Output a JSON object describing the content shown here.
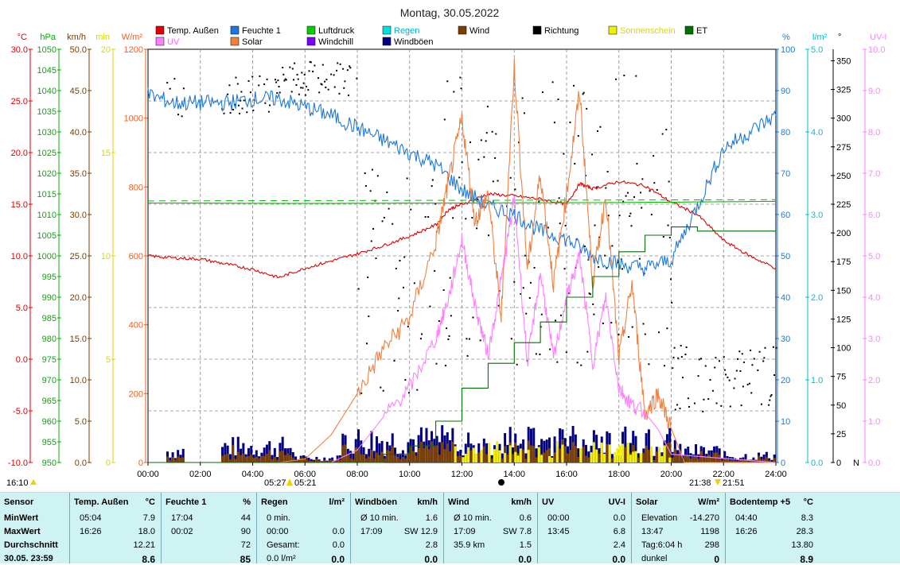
{
  "title": "Montag, 30.05.2022",
  "legend": [
    {
      "label": "Temp. Außen",
      "color": "#e00000"
    },
    {
      "label": "Feuchte 1",
      "color": "#1e78dc"
    },
    {
      "label": "Luftdruck",
      "color": "#00d000"
    },
    {
      "label": "Regen",
      "color": "#00e0e0"
    },
    {
      "label": "Wind",
      "color": "#7a3f00"
    },
    {
      "label": "Richtung",
      "color": "#000000"
    },
    {
      "label": "Sonnenschein",
      "color": "#f0f000"
    },
    {
      "label": "ET",
      "color": "#007000"
    },
    {
      "label": "UV",
      "color": "#ff80ff"
    },
    {
      "label": "Solar",
      "color": "#f08040"
    },
    {
      "label": "Windchill",
      "color": "#8000ff"
    },
    {
      "label": "Windböen",
      "color": "#000080"
    }
  ],
  "axes": {
    "left": [
      {
        "unit": "°C",
        "color": "#e00000",
        "ticks": [
          "30.0",
          "25.0",
          "20.0",
          "15.0",
          "10.0",
          "5.0",
          "0.0",
          "-5.0",
          "-10.0"
        ]
      },
      {
        "unit": "hPa",
        "color": "#00b000",
        "ticks": [
          "1050",
          "1045",
          "1040",
          "1035",
          "1030",
          "1025",
          "1020",
          "1015",
          "1010",
          "1005",
          "1000",
          "995",
          "990",
          "985",
          "980",
          "975",
          "970",
          "965",
          "960",
          "955",
          "950"
        ]
      },
      {
        "unit": "km/h",
        "color": "#7a3f00",
        "ticks": [
          "50.0",
          "45.0",
          "40.0",
          "35.0",
          "30.0",
          "25.0",
          "20.0",
          "15.0",
          "10.0",
          "5.0",
          "0.0"
        ]
      },
      {
        "unit": "min",
        "color": "#d8d800",
        "ticks": [
          "20",
          "15",
          "10",
          "5",
          "0"
        ]
      },
      {
        "unit": "W/m²",
        "color": "#f06020",
        "ticks": [
          "1200",
          "1000",
          "800",
          "600",
          "400",
          "200",
          "0"
        ]
      }
    ],
    "right": [
      {
        "unit": "%",
        "color": "#1e78dc",
        "ticks": [
          "100",
          "90",
          "80",
          "70",
          "60",
          "50",
          "40",
          "30",
          "20",
          "10",
          "0"
        ]
      },
      {
        "unit": "l/m²",
        "color": "#00c0d0",
        "ticks": [
          "5.0",
          "4.0",
          "3.0",
          "2.0",
          "1.0",
          "0.0"
        ]
      },
      {
        "unit": "°",
        "color": "#000000",
        "ticks": [
          "350",
          "325",
          "300",
          "275",
          "250",
          "225",
          "200",
          "175",
          "150",
          "125",
          "100",
          "75",
          "50",
          "25",
          "0"
        ]
      },
      {
        "unit": "UV-I",
        "color": "#ff80ff",
        "ticks": [
          "10.0",
          "9.0",
          "8.0",
          "7.0",
          "6.0",
          "5.0",
          "4.0",
          "3.0",
          "2.0",
          "1.0",
          "0.0"
        ]
      }
    ],
    "x_ticks": [
      "00:00",
      "02:00",
      "04:00",
      "06:00",
      "08:00",
      "10:00",
      "12:00",
      "14:00",
      "16:00",
      "18:00",
      "20:00",
      "22:00",
      "24:00"
    ],
    "n_label": "N",
    "top_left_time": "16:10",
    "sunrise": "05:27",
    "sunrise2": "05:21",
    "sunset": "21:38",
    "sunset2": "21:51"
  },
  "chart_data": {
    "type": "line",
    "title": "Montag, 30.05.2022",
    "x_unit": "hour of day",
    "xlim": [
      0,
      24
    ],
    "series": [
      {
        "name": "Temp. Außen",
        "unit": "°C",
        "ylim": [
          -10,
          30
        ],
        "x": [
          0,
          1,
          2,
          3,
          4,
          5,
          6,
          7,
          8,
          9,
          10,
          11,
          11.5,
          12,
          13,
          14,
          15,
          16,
          16.5,
          17,
          18,
          19,
          20,
          21,
          22,
          23,
          24
        ],
        "y": [
          10.0,
          9.8,
          9.7,
          9.2,
          8.7,
          7.9,
          8.8,
          9.5,
          10.2,
          11.0,
          11.9,
          13.0,
          14.5,
          15.0,
          16.0,
          15.8,
          15.5,
          15.0,
          17.0,
          16.5,
          17.2,
          16.8,
          15.2,
          14.0,
          11.5,
          10.0,
          8.8
        ]
      },
      {
        "name": "Feuchte 1",
        "unit": "%",
        "ylim": [
          0,
          100
        ],
        "x": [
          0,
          1,
          2,
          3,
          4,
          5,
          6,
          7,
          8,
          9,
          10,
          11,
          12,
          13,
          14,
          15,
          16,
          17,
          18,
          19,
          20,
          21,
          22,
          23,
          24
        ],
        "y": [
          89,
          87,
          87,
          87,
          88,
          88,
          86,
          84,
          81,
          78,
          75,
          72,
          66,
          62,
          60,
          56,
          54,
          50,
          48,
          47,
          49,
          62,
          76,
          80,
          84
        ]
      },
      {
        "name": "Luftdruck",
        "unit": "hPa",
        "ylim": [
          950,
          1050
        ],
        "x": [
          0,
          6,
          12,
          18,
          24
        ],
        "y": [
          1012.8,
          1012.7,
          1012.8,
          1012.9,
          1013.2
        ]
      },
      {
        "name": "Solar",
        "unit": "W/m²",
        "ylim": [
          0,
          1200
        ],
        "x": [
          0,
          5,
          6,
          7,
          8,
          9,
          10,
          11,
          11.5,
          12,
          12.5,
          13,
          13.5,
          14,
          14.5,
          15,
          15.5,
          16,
          16.5,
          17,
          17.5,
          18,
          18.5,
          19,
          19.5,
          20,
          20.5,
          24
        ],
        "y": [
          0,
          0,
          10,
          80,
          200,
          330,
          420,
          640,
          820,
          1000,
          700,
          780,
          420,
          1150,
          560,
          840,
          520,
          780,
          1080,
          520,
          780,
          300,
          520,
          140,
          200,
          100,
          0,
          0
        ]
      },
      {
        "name": "UV",
        "unit": "UV-I",
        "ylim": [
          0,
          10
        ],
        "x": [
          0,
          7,
          8,
          9,
          10,
          11,
          11.5,
          12,
          12.5,
          13,
          13.5,
          14,
          14.5,
          15,
          15.5,
          16,
          16.5,
          17,
          17.5,
          18,
          18.5,
          19,
          19.5,
          20,
          24
        ],
        "y": [
          0,
          0,
          0.3,
          1.1,
          1.8,
          3.0,
          4.0,
          5.4,
          3.8,
          2.6,
          4.4,
          6.4,
          2.4,
          4.6,
          2.5,
          4.0,
          5.0,
          2.4,
          4.0,
          1.8,
          1.4,
          1.2,
          0.8,
          0.2,
          0
        ]
      },
      {
        "name": "ET",
        "unit": "l/m²",
        "ylim": [
          0,
          5
        ],
        "x": [
          0,
          8,
          9,
          10,
          11,
          12,
          13,
          14,
          15,
          16,
          17,
          18,
          19,
          20,
          21,
          22,
          24
        ],
        "y": [
          0,
          0,
          0.1,
          0.2,
          0.5,
          0.9,
          1.2,
          1.45,
          1.7,
          2.0,
          2.25,
          2.55,
          2.75,
          2.85,
          2.8,
          2.8,
          2.8
        ]
      }
    ]
  },
  "table": {
    "columns": [
      {
        "header": "Sensor",
        "unit": "",
        "rows": [
          "MinWert",
          "MaxWert",
          "Durchschnitt",
          "30.05. 23:59"
        ]
      },
      {
        "header": "Temp. Außen",
        "unit": "°C",
        "rows": [
          [
            "05:04",
            "7.9"
          ],
          [
            "16:26",
            "18.0"
          ],
          [
            "",
            "12.21"
          ],
          [
            "",
            "8.6"
          ]
        ]
      },
      {
        "header": "Feuchte 1",
        "unit": "%",
        "rows": [
          [
            "17:04",
            "44"
          ],
          [
            "00:02",
            "90"
          ],
          [
            "",
            "72"
          ],
          [
            "",
            "85"
          ]
        ]
      },
      {
        "header": "Regen",
        "unit": "l/m²",
        "rows": [
          [
            "0 min.",
            ""
          ],
          [
            "00:00",
            "0.0"
          ],
          [
            "Gesamt:",
            "0.0"
          ],
          [
            "0.0 l/m²",
            "0.0"
          ]
        ]
      },
      {
        "header": "Windböen",
        "unit": "km/h",
        "rows": [
          [
            "Ø 10 min.",
            "1.6"
          ],
          [
            "17:09",
            "SW 12.9"
          ],
          [
            "",
            "2.8"
          ],
          [
            "",
            "0.0"
          ]
        ]
      },
      {
        "header": "Wind",
        "unit": "km/h",
        "rows": [
          [
            "Ø 10 min.",
            "0.6"
          ],
          [
            "17:09",
            "SW 7.8"
          ],
          [
            "35.9 km",
            "1.5"
          ],
          [
            "",
            "0.0"
          ]
        ]
      },
      {
        "header": "UV",
        "unit": "UV-I",
        "rows": [
          [
            "00:00",
            "0.0"
          ],
          [
            "13:45",
            "6.8"
          ],
          [
            "",
            "2.4"
          ],
          [
            "",
            "0.0"
          ]
        ]
      },
      {
        "header": "Solar",
        "unit": "W/m²",
        "rows": [
          [
            "Elevation",
            "-14.270"
          ],
          [
            "13:47",
            "1198"
          ],
          [
            "Tag:6:04 h",
            "298"
          ],
          [
            "dunkel",
            "0"
          ]
        ]
      },
      {
        "header": "Bodentemp +5",
        "unit": "°C",
        "rows": [
          [
            "04:40",
            "8.3"
          ],
          [
            "16:26",
            "28.3"
          ],
          [
            "",
            "13.80"
          ],
          [
            "",
            "8.9"
          ]
        ]
      }
    ]
  }
}
